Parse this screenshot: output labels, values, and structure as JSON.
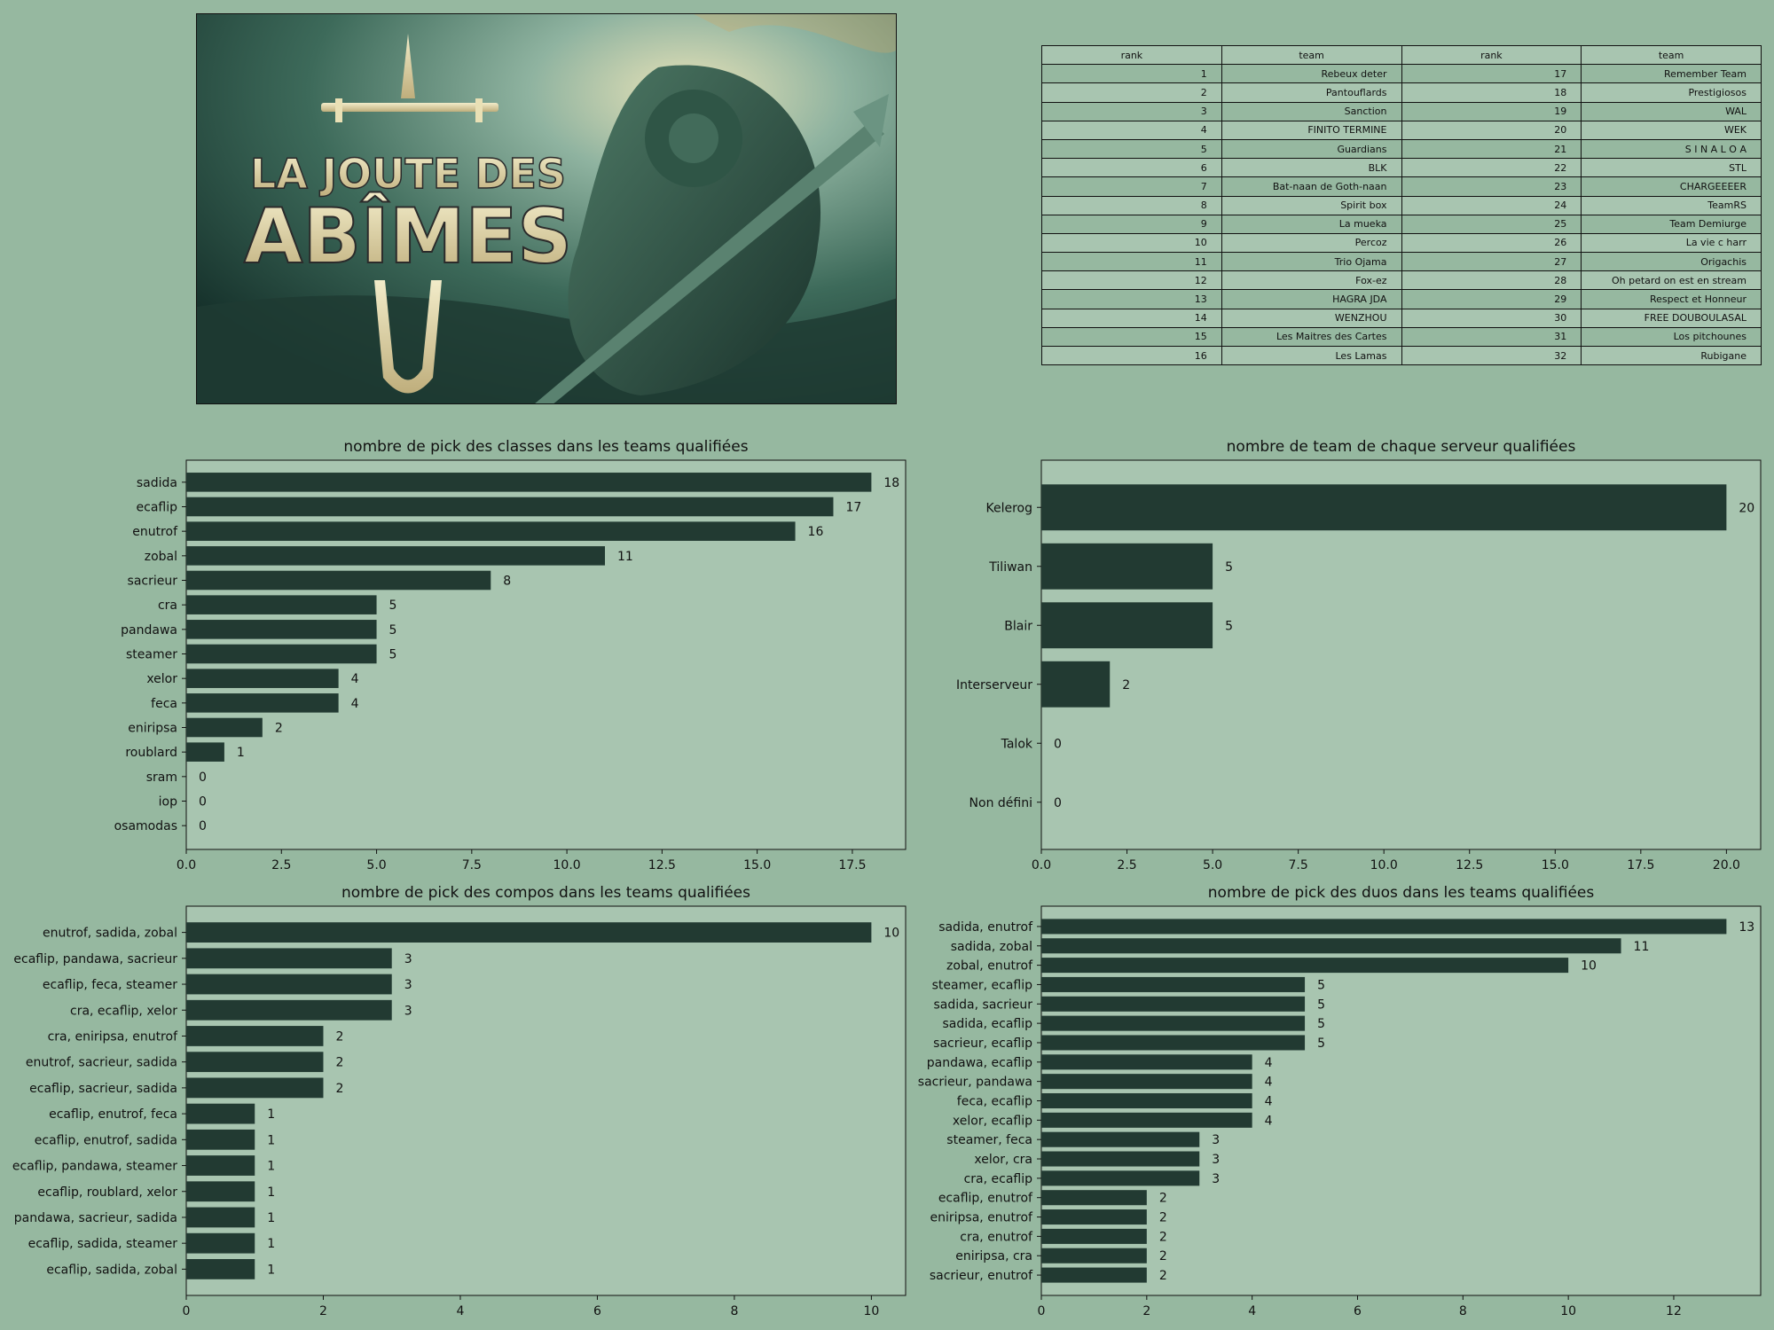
{
  "banner": {
    "line1": "LA JOUTE DES",
    "line2": "ABÎMES"
  },
  "table": {
    "headers": [
      "rank",
      "team",
      "rank",
      "team"
    ],
    "rows": [
      [
        "1",
        "Rebeux deter",
        "17",
        "Remember Team"
      ],
      [
        "2",
        "Pantouflards",
        "18",
        "Prestigiosos"
      ],
      [
        "3",
        "Sanction",
        "19",
        "WAL"
      ],
      [
        "4",
        "FINITO TERMINE",
        "20",
        "WEK"
      ],
      [
        "5",
        "Guardians",
        "21",
        "S I N A L O A"
      ],
      [
        "6",
        "BLK",
        "22",
        "STL"
      ],
      [
        "7",
        "Bat-naan de Goth-naan",
        "23",
        "CHARGEEEER"
      ],
      [
        "8",
        "Spirit box",
        "24",
        "TeamRS"
      ],
      [
        "9",
        "La mueka",
        "25",
        "Team Demiurge"
      ],
      [
        "10",
        "Percoz",
        "26",
        "La vie c harr"
      ],
      [
        "11",
        "Trio Ojama",
        "27",
        "Origachis"
      ],
      [
        "12",
        "Fox-ez",
        "28",
        "Oh petard on est en stream"
      ],
      [
        "13",
        "HAGRA JDA",
        "29",
        "Respect et Honneur"
      ],
      [
        "14",
        "WENZHOU",
        "30",
        "FREE DOUBOULASAL"
      ],
      [
        "15",
        "Les Maitres des Cartes",
        "31",
        "Los pitchounes"
      ],
      [
        "16",
        "Les Lamas",
        "32",
        "Rubigane"
      ]
    ]
  },
  "colors": {
    "background": "#96b8a0",
    "plot_background": "#a8c5b0",
    "bar": "#223a32"
  },
  "chart_data": [
    {
      "type": "bar",
      "orientation": "horizontal",
      "title": "nombre de pick des classes dans les teams qualifiées",
      "categories": [
        "sadida",
        "ecaflip",
        "enutrof",
        "zobal",
        "sacrieur",
        "cra",
        "pandawa",
        "steamer",
        "xelor",
        "feca",
        "eniripsa",
        "roublard",
        "sram",
        "iop",
        "osamodas"
      ],
      "values": [
        18,
        17,
        16,
        11,
        8,
        5,
        5,
        5,
        4,
        4,
        2,
        1,
        0,
        0,
        0
      ],
      "xlim": [
        0,
        18.9
      ],
      "xticks": [
        0,
        2.5,
        5,
        7.5,
        10,
        12.5,
        15,
        17.5
      ],
      "xtick_labels": [
        "0.0",
        "2.5",
        "5.0",
        "7.5",
        "10.0",
        "12.5",
        "15.0",
        "17.5"
      ]
    },
    {
      "type": "bar",
      "orientation": "horizontal",
      "title": "nombre de team de chaque serveur qualifiées",
      "categories": [
        "Kelerog",
        "Tiliwan",
        "Blair",
        "Interserveur",
        "Talok",
        "Non défini"
      ],
      "values": [
        20,
        5,
        5,
        2,
        0,
        0
      ],
      "xlim": [
        0,
        21
      ],
      "xticks": [
        0,
        2.5,
        5,
        7.5,
        10,
        12.5,
        15,
        17.5,
        20
      ],
      "xtick_labels": [
        "0.0",
        "2.5",
        "5.0",
        "7.5",
        "10.0",
        "12.5",
        "15.0",
        "17.5",
        "20.0"
      ]
    },
    {
      "type": "bar",
      "orientation": "horizontal",
      "title": "nombre de pick des compos dans les teams qualifiées",
      "categories": [
        "enutrof, sadida, zobal",
        "ecaflip, pandawa, sacrieur",
        "ecaflip, feca, steamer",
        "cra, ecaflip, xelor",
        "cra, eniripsa, enutrof",
        "enutrof, sacrieur, sadida",
        "ecaflip, sacrieur, sadida",
        "ecaflip, enutrof, feca",
        "ecaflip, enutrof, sadida",
        "ecaflip, pandawa, steamer",
        "ecaflip, roublard, xelor",
        "pandawa, sacrieur, sadida",
        "ecaflip, sadida, steamer",
        "ecaflip, sadida, zobal"
      ],
      "values": [
        10,
        3,
        3,
        3,
        2,
        2,
        2,
        1,
        1,
        1,
        1,
        1,
        1,
        1
      ],
      "xlim": [
        0,
        10.5
      ],
      "xticks": [
        0,
        2,
        4,
        6,
        8,
        10
      ],
      "xtick_labels": [
        "0",
        "2",
        "4",
        "6",
        "8",
        "10"
      ]
    },
    {
      "type": "bar",
      "orientation": "horizontal",
      "title": "nombre de pick des duos dans les teams qualifiées",
      "categories": [
        "sadida, enutrof",
        "sadida, zobal",
        "zobal, enutrof",
        "steamer, ecaflip",
        "sadida, sacrieur",
        "sadida, ecaflip",
        "sacrieur, ecaflip",
        "pandawa, ecaflip",
        "sacrieur, pandawa",
        "feca, ecaflip",
        "xelor, ecaflip",
        "steamer, feca",
        "xelor, cra",
        "cra, ecaflip",
        "ecaflip, enutrof",
        "eniripsa, enutrof",
        "cra, enutrof",
        "eniripsa, cra",
        "sacrieur, enutrof"
      ],
      "values": [
        13,
        11,
        10,
        5,
        5,
        5,
        5,
        4,
        4,
        4,
        4,
        3,
        3,
        3,
        2,
        2,
        2,
        2,
        2
      ],
      "xlim": [
        0,
        13.65
      ],
      "xticks": [
        0,
        2,
        4,
        6,
        8,
        10,
        12
      ],
      "xtick_labels": [
        "0",
        "2",
        "4",
        "6",
        "8",
        "10",
        "12"
      ]
    }
  ]
}
